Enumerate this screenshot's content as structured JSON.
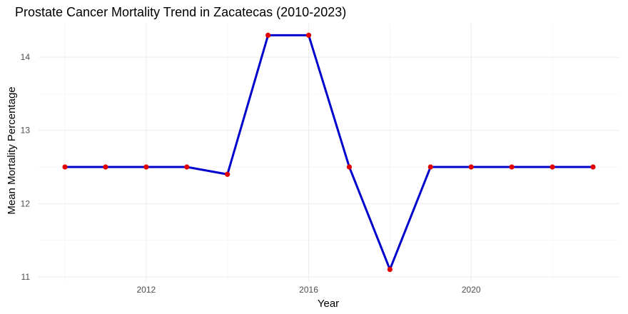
{
  "chart_data": {
    "type": "line",
    "title": "Prostate Cancer Mortality Trend in Zacatecas (2010-2023)",
    "xlabel": "Year",
    "ylabel": "Mean Mortality Percentage",
    "x": [
      2010,
      2011,
      2012,
      2013,
      2014,
      2015,
      2016,
      2017,
      2018,
      2019,
      2020,
      2021,
      2022,
      2023
    ],
    "series": [
      {
        "values": [
          12.5,
          12.5,
          12.5,
          12.5,
          12.4,
          14.3,
          14.3,
          12.5,
          11.1,
          12.5,
          12.5,
          12.5,
          12.5,
          12.5
        ]
      }
    ],
    "xlim": [
      2009.35,
      2023.65
    ],
    "ylim": [
      10.94,
      14.46
    ],
    "x_ticks": [
      2012,
      2016,
      2020
    ],
    "x_tick_labels": [
      "2012",
      "2016",
      "2020"
    ],
    "y_ticks": [
      11,
      12,
      13,
      14
    ],
    "y_tick_labels": [
      "11",
      "12",
      "13",
      "14"
    ],
    "grid": true,
    "legend": "none",
    "colors": {
      "line": "#0000CD",
      "points": "#E00000",
      "background": "#FFFFFF",
      "grid": "#EBEBEB"
    }
  }
}
